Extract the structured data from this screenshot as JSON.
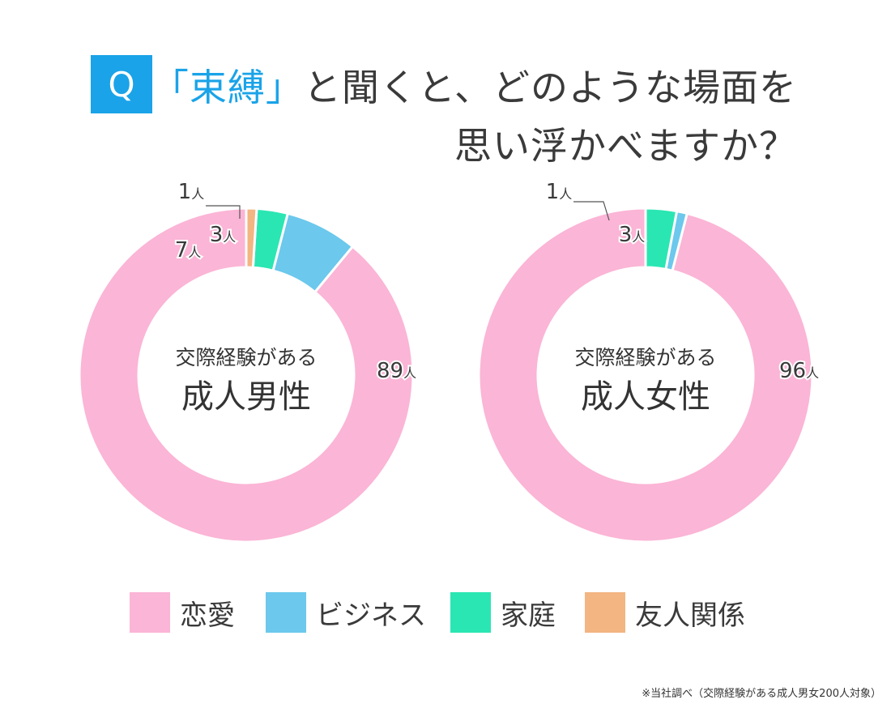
{
  "title": {
    "badge": "Q",
    "line1_quote": "「束縛」",
    "line1_rest": "と聞くと、どのような場面を",
    "line2": "思い浮かべますか？"
  },
  "colors": {
    "badge": "#1aa3e8",
    "quote": "#1aa3e8",
    "恋愛": "#fbb5d6",
    "ビジネス": "#6cc8ec",
    "家庭": "#2ae6b2",
    "友人関係": "#f3b582"
  },
  "chart_data": [
    {
      "type": "pie",
      "donut": true,
      "center_label_top": "交際経験がある",
      "center_label_main": "成人男性",
      "categories": [
        "恋愛",
        "ビジネス",
        "家庭",
        "友人関係"
      ],
      "values": [
        89,
        7,
        3,
        1
      ],
      "value_labels": [
        "89人",
        "7人",
        "3人",
        "1人"
      ]
    },
    {
      "type": "pie",
      "donut": true,
      "center_label_top": "交際経験がある",
      "center_label_main": "成人女性",
      "categories": [
        "恋愛",
        "ビジネス",
        "家庭",
        "友人関係"
      ],
      "values": [
        96,
        1,
        3,
        0
      ],
      "value_labels": [
        "96人",
        "1人",
        "3人",
        ""
      ]
    }
  ],
  "legend": [
    "恋愛",
    "ビジネス",
    "家庭",
    "友人関係"
  ],
  "footnote": "※当社調べ（交際経験がある成人男女200人対象）"
}
